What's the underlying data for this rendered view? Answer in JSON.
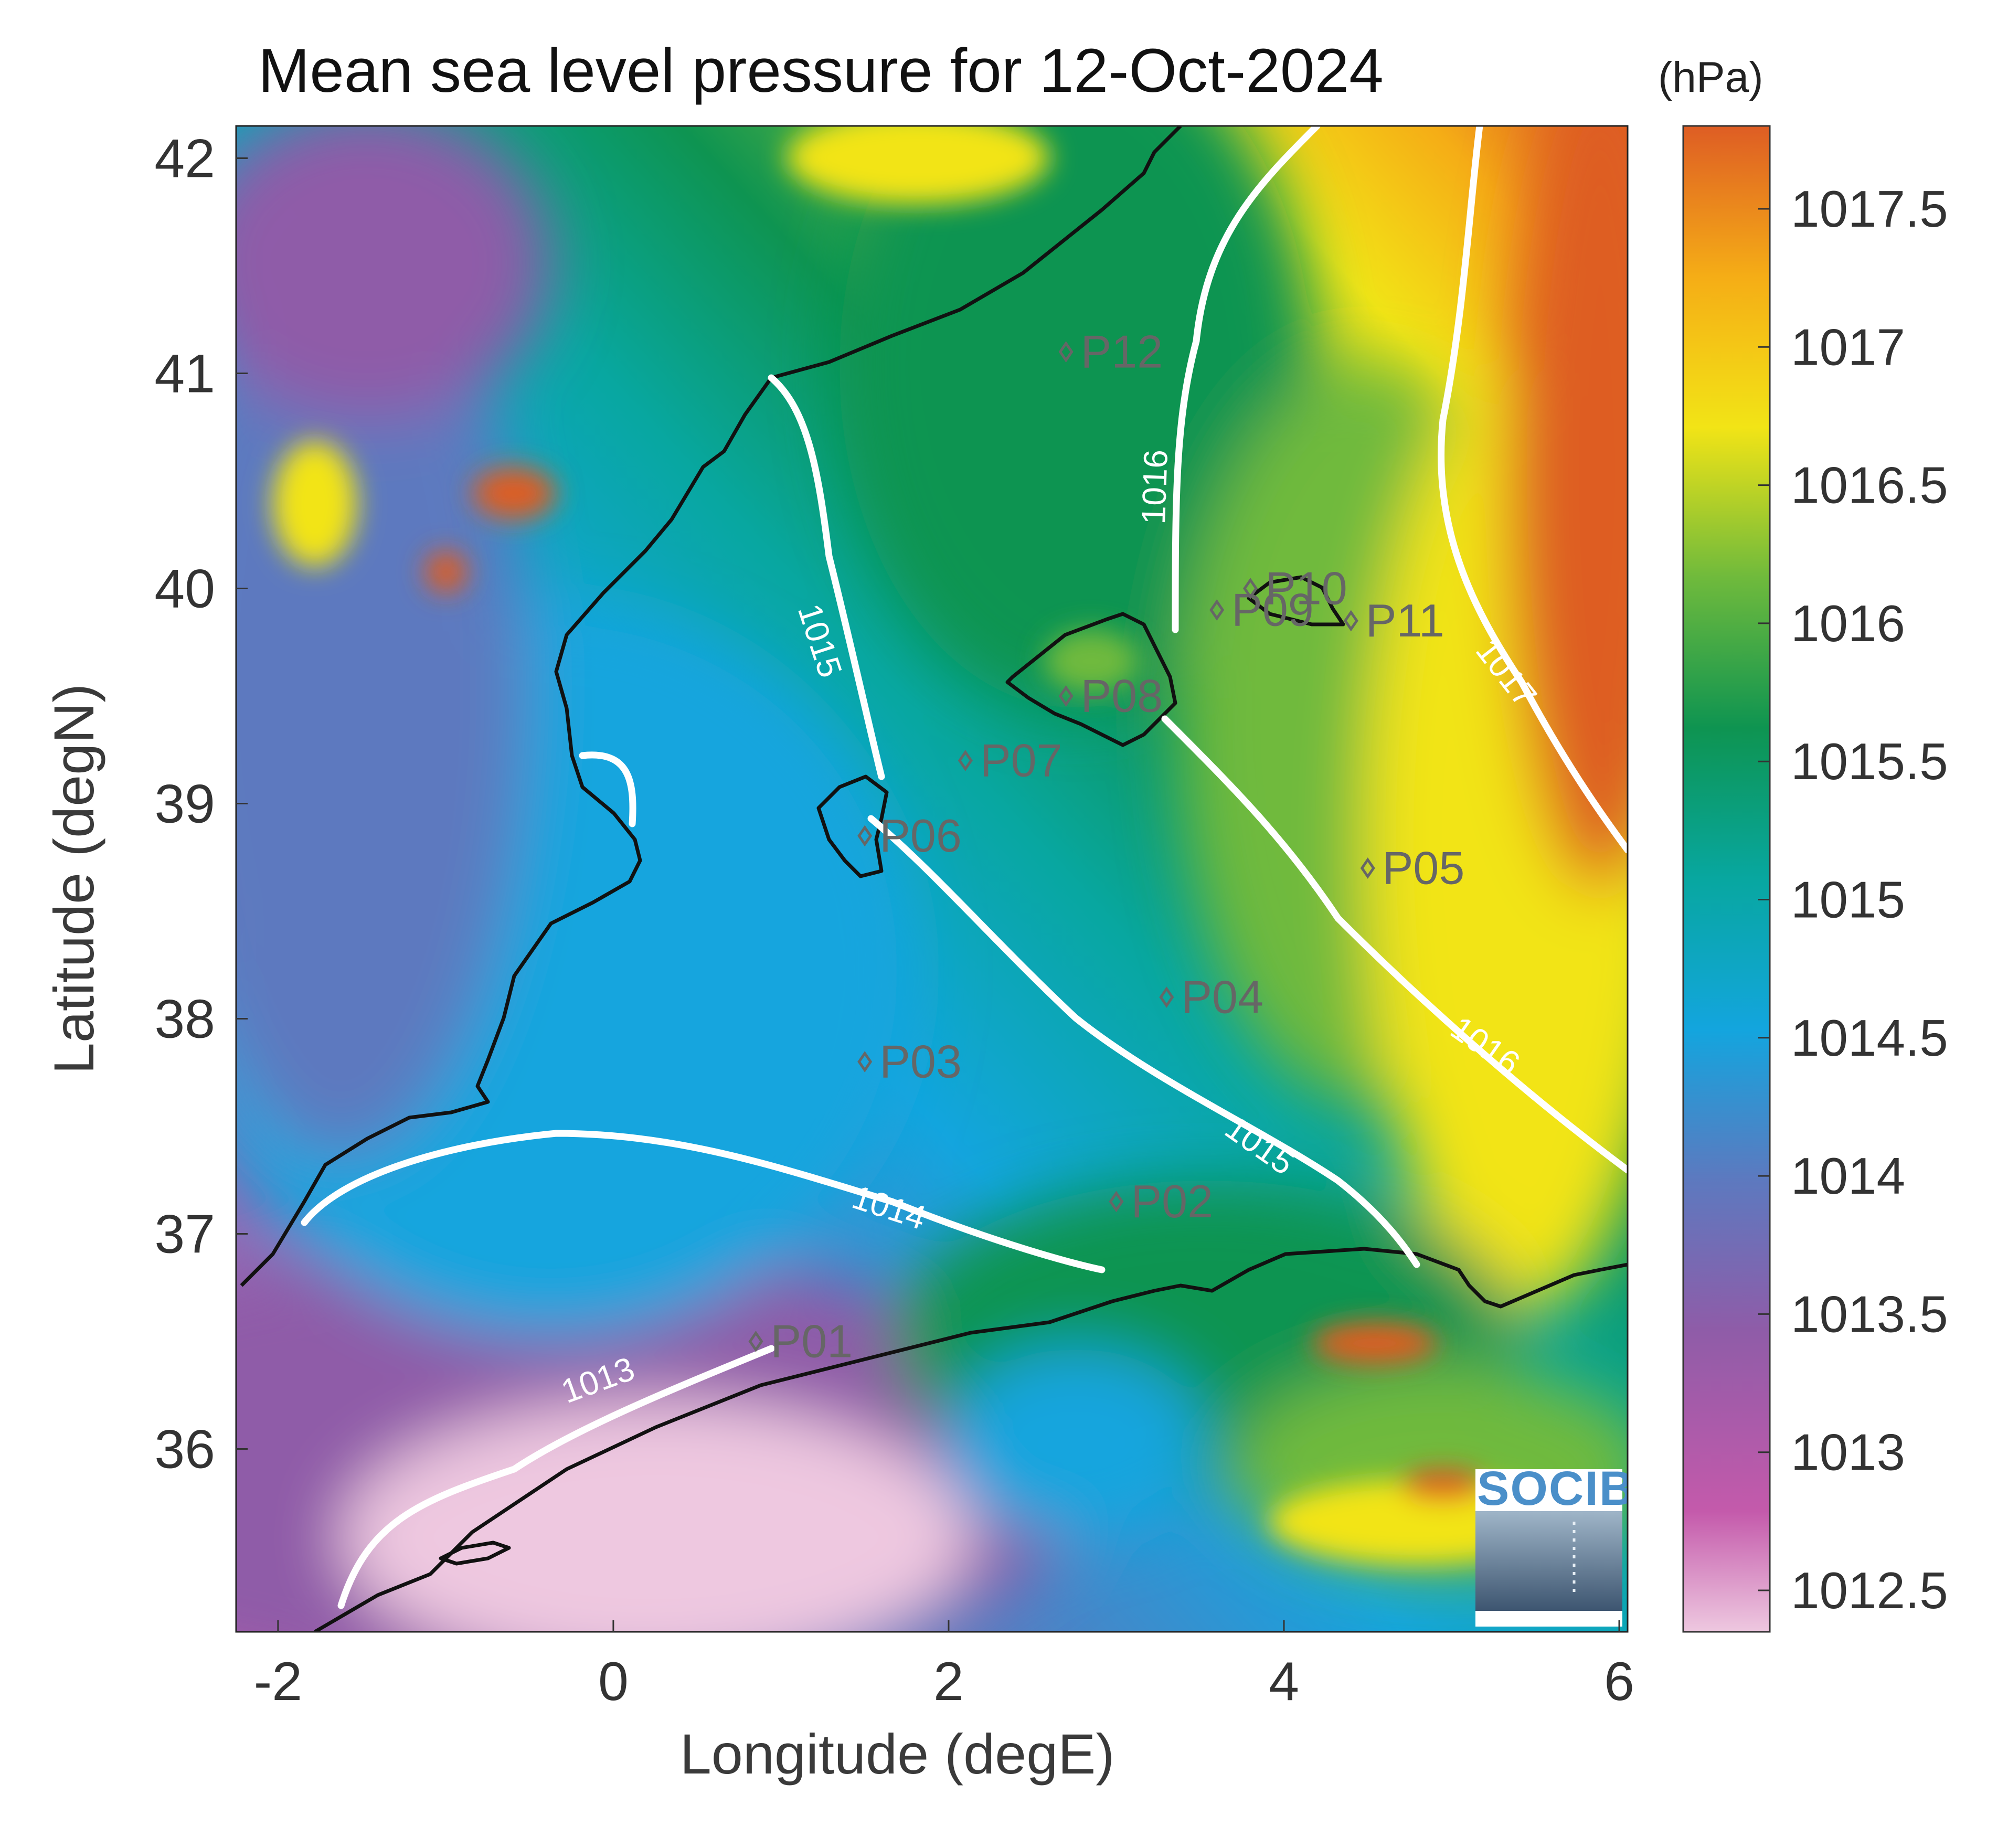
{
  "chart_data": {
    "type": "heatmap",
    "title": "Mean sea level pressure for 12-Oct-2024",
    "units": "(hPa)",
    "xlabel": "Longitude (degE)",
    "ylabel": "Latitude (degN)",
    "xlim": [
      -2.25,
      6.05
    ],
    "ylim": [
      35.15,
      42.15
    ],
    "x_ticks": [
      "-2",
      "0",
      "2",
      "4",
      "6"
    ],
    "x_tick_values": [
      -2,
      0,
      2,
      4,
      6
    ],
    "y_ticks": [
      "42",
      "41",
      "40",
      "39",
      "38",
      "37",
      "36"
    ],
    "y_tick_values": [
      42,
      41,
      40,
      39,
      38,
      37,
      36
    ],
    "colorbar": {
      "range": [
        1012.35,
        1017.8
      ],
      "ticks": [
        "1017.5",
        "1017",
        "1016.5",
        "1016",
        "1015.5",
        "1015",
        "1014.5",
        "1014",
        "1013.5",
        "1013",
        "1012.5"
      ],
      "tick_values": [
        1017.5,
        1017,
        1016.5,
        1016,
        1015.5,
        1015,
        1014.5,
        1014,
        1013.5,
        1013,
        1012.5
      ],
      "colors": [
        "#eec8e0",
        "#c45aab",
        "#8f5ca8",
        "#5d79bf",
        "#13a5de",
        "#08a7a0",
        "#0e9451",
        "#6fba3c",
        "#f2e416",
        "#f5ad16",
        "#de5d24"
      ]
    },
    "contour_levels": [
      "1013",
      "1014",
      "1015",
      "1016",
      "1017"
    ],
    "points": [
      {
        "name": "P01",
        "lon": 0.85,
        "lat": 36.5
      },
      {
        "name": "P02",
        "lon": 3.0,
        "lat": 37.15
      },
      {
        "name": "P03",
        "lon": 1.5,
        "lat": 37.8
      },
      {
        "name": "P04",
        "lon": 3.3,
        "lat": 38.1
      },
      {
        "name": "P05",
        "lon": 4.5,
        "lat": 38.7
      },
      {
        "name": "P06",
        "lon": 1.5,
        "lat": 38.85
      },
      {
        "name": "P07",
        "lon": 2.1,
        "lat": 39.2
      },
      {
        "name": "P08",
        "lon": 2.7,
        "lat": 39.5
      },
      {
        "name": "P09",
        "lon": 3.6,
        "lat": 39.9
      },
      {
        "name": "P10",
        "lon": 3.8,
        "lat": 40.0
      },
      {
        "name": "P11",
        "lon": 4.4,
        "lat": 39.85
      },
      {
        "name": "P12",
        "lon": 2.7,
        "lat": 41.1
      }
    ],
    "grid": false,
    "legend": "colorbar-right"
  },
  "logo": {
    "text": "SOCIB"
  }
}
